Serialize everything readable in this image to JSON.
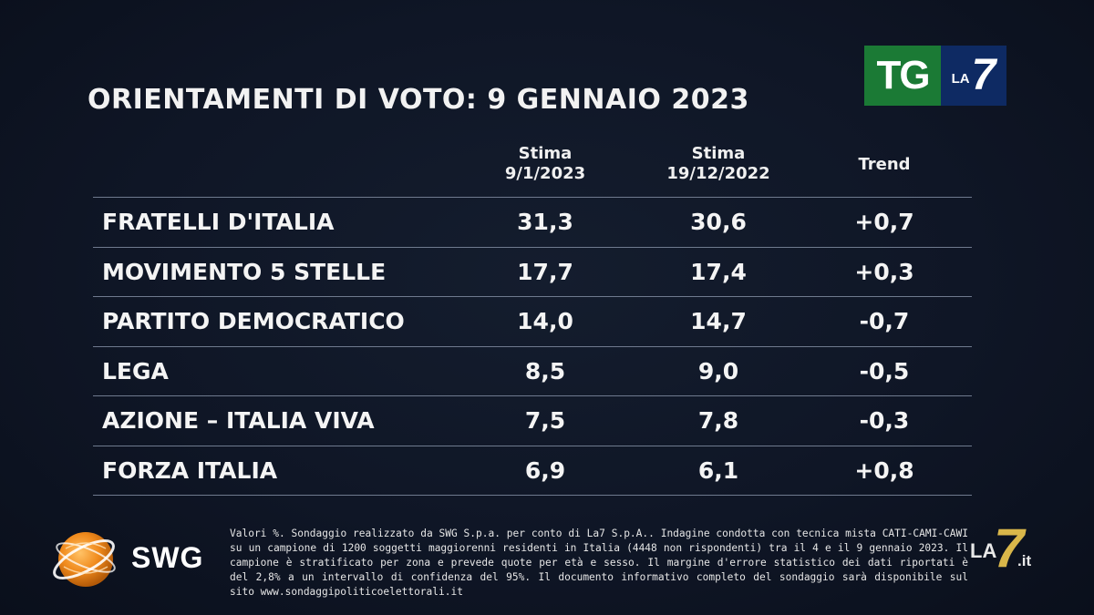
{
  "title": "ORIENTAMENTI DI VOTO: 9 GENNAIO 2023",
  "broadcaster_logo": {
    "tg": "TG",
    "la": "LA",
    "seven": "7"
  },
  "table": {
    "headers": {
      "col1": [
        "Stima",
        "9/1/2023"
      ],
      "col2": [
        "Stima",
        "19/12/2022"
      ],
      "col3": "Trend"
    },
    "rows": [
      {
        "party": "FRATELLI D'ITALIA",
        "current": "31,3",
        "previous": "30,6",
        "trend": "+0,7"
      },
      {
        "party": "MOVIMENTO 5 STELLE",
        "current": "17,7",
        "previous": "17,4",
        "trend": "+0,3"
      },
      {
        "party": "PARTITO DEMOCRATICO",
        "current": "14,0",
        "previous": "14,7",
        "trend": "-0,7"
      },
      {
        "party": "LEGA",
        "current": "8,5",
        "previous": "9,0",
        "trend": "-0,5"
      },
      {
        "party": "AZIONE – ITALIA VIVA",
        "current": "7,5",
        "previous": "7,8",
        "trend": "-0,3"
      },
      {
        "party": "FORZA ITALIA",
        "current": "6,9",
        "previous": "6,1",
        "trend": "+0,8"
      }
    ]
  },
  "pollster_logo": {
    "text": "SWG",
    "icon": "swg-globe-icon"
  },
  "footnote": "Valori %. Sondaggio realizzato da SWG S.p.a. per conto di La7 S.p.A.. Indagine condotta con tecnica mista CATI-CAMI-CAWI su un campione di 1200 soggetti maggiorenni residenti in Italia (4448 non rispondenti) tra il 4 e il 9 gennaio 2023. Il campione è stratificato per zona e prevede quote per età e sesso. Il margine d'errore statistico dei dati riportati è del 2,8% a un intervallo di confidenza del 95%. Il documento informativo completo del sondaggio sarà disponibile sul sito www.sondaggipoliticoelettorali.it",
  "corner_logo": {
    "la": "LA",
    "seven": "7",
    "it": ".it"
  },
  "colors": {
    "background": "#0f1626",
    "text": "#f4f4f4",
    "divider": "#6f7a8e",
    "tg_green": "#1b7a35",
    "la7_blue": "#0e2a63",
    "swg_orange": "#f08a1c",
    "la7_gold": "#d9b74a"
  }
}
